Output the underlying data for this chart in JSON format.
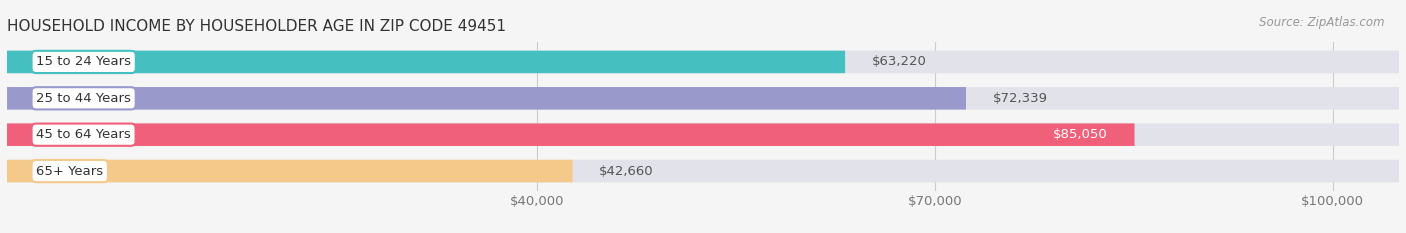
{
  "title": "HOUSEHOLD INCOME BY HOUSEHOLDER AGE IN ZIP CODE 49451",
  "source": "Source: ZipAtlas.com",
  "categories": [
    "15 to 24 Years",
    "25 to 44 Years",
    "45 to 64 Years",
    "65+ Years"
  ],
  "values": [
    63220,
    72339,
    85050,
    42660
  ],
  "bar_colors": [
    "#45bfbf",
    "#9999cc",
    "#f0607a",
    "#f5c98a"
  ],
  "background_color": "#f5f5f5",
  "bar_bg_color": "#e2e2ea",
  "xlim": [
    0,
    105000
  ],
  "xlim_display": [
    0,
    105000
  ],
  "xticks": [
    40000,
    70000,
    100000
  ],
  "xtick_labels": [
    "$40,000",
    "$70,000",
    "$100,000"
  ],
  "bar_height": 0.62,
  "label_fontsize": 9.5,
  "title_fontsize": 11,
  "source_fontsize": 8.5,
  "value_label_color_inside": "#ffffff",
  "value_label_color_outside": "#555555",
  "grid_color": "#cccccc"
}
